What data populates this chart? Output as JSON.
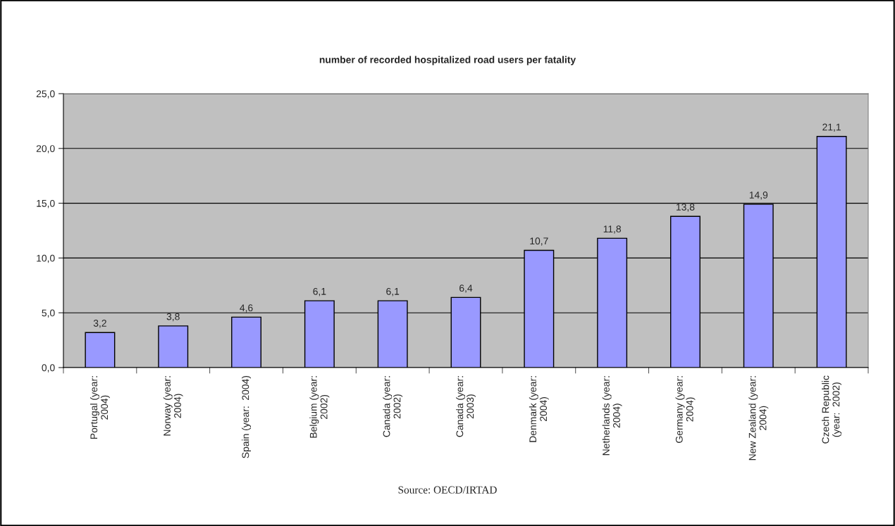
{
  "chart_data": {
    "type": "bar",
    "title": "number of recorded hospitalized road users per fatality",
    "categories": [
      "Portugal (year:\n2004)",
      "Norway (year:\n2004)",
      "Spain (year:  2004)",
      "Belgium (year:\n2002)",
      "Canada (year:\n2002)",
      "Canada (year:\n2003)",
      "Denmark (year:\n2004)",
      "Netherlands (year:\n2004)",
      "Germany (year:\n2004)",
      "New Zealand (year:\n2004)",
      "Czech Republic\n(year:  2002)"
    ],
    "values": [
      3.2,
      3.8,
      4.6,
      6.1,
      6.1,
      6.4,
      10.7,
      11.8,
      13.8,
      14.9,
      21.1
    ],
    "value_labels": [
      "3,2",
      "3,8",
      "4,6",
      "6,1",
      "6,1",
      "6,4",
      "10,7",
      "11,8",
      "13,8",
      "14,9",
      "21,1"
    ],
    "color": "#9999ff",
    "ylim": [
      0,
      25
    ],
    "yticks": [
      {
        "value": 0,
        "label": "0,0"
      },
      {
        "value": 5,
        "label": "5,0"
      },
      {
        "value": 10,
        "label": "10,0"
      },
      {
        "value": 15,
        "label": "15,0"
      },
      {
        "value": 20,
        "label": "20,0"
      },
      {
        "value": 25,
        "label": "25,0"
      }
    ],
    "grid": "y",
    "legend": false,
    "annotations": [
      "Source: OECD/IRTAD"
    ]
  }
}
